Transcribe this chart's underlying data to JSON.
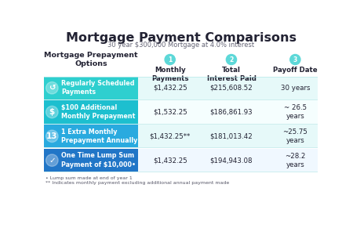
{
  "title": "Mortgage Payment Comparisons",
  "subtitle": "30 year $300,000 Mortgage at 4.0% interest",
  "col_header_label": "Mortgage Prepayment\nOptions",
  "col_numbers": [
    "1",
    "2",
    "3"
  ],
  "col_headers": [
    "Monthly\nPayments",
    "Total\nInterest Paid",
    "Payoff Date"
  ],
  "row_labels": [
    "Regularly Scheduled\nPayments",
    "$100 Additional\nMonthly Prepayment",
    "1 Extra Monthly\nPrepayment Annually",
    "One Time Lump Sum\nPayment of $10,000•"
  ],
  "row_icons": [
    "↺",
    "$",
    "13",
    "✓"
  ],
  "monthly_payments": [
    "$1,432.25",
    "$1,532.25",
    "$1,432.25**",
    "$1,432.25"
  ],
  "total_interest": [
    "$215,608.52",
    "$186,861.93",
    "$181,013.42",
    "$194,943.08"
  ],
  "payoff_date": [
    "30 years",
    "~ 26.5\nyears",
    "~25.75\nyears",
    "~28.2\nyears"
  ],
  "row_bg_colors": [
    "#2ecfcf",
    "#1dbfcf",
    "#29aadf",
    "#2176c7"
  ],
  "row_data_colors": [
    "#e6f9f9",
    "#f5fefe",
    "#e6f9f9",
    "#f0f8ff"
  ],
  "header_circle_color": "#5dd8d8",
  "footnote1": "• Lump sum made at end of year 1",
  "footnote2": "** Indicates monthly payment excluding additional annual payment made",
  "bg_color": "#ffffff",
  "text_dark": "#222233",
  "text_white": "#ffffff"
}
